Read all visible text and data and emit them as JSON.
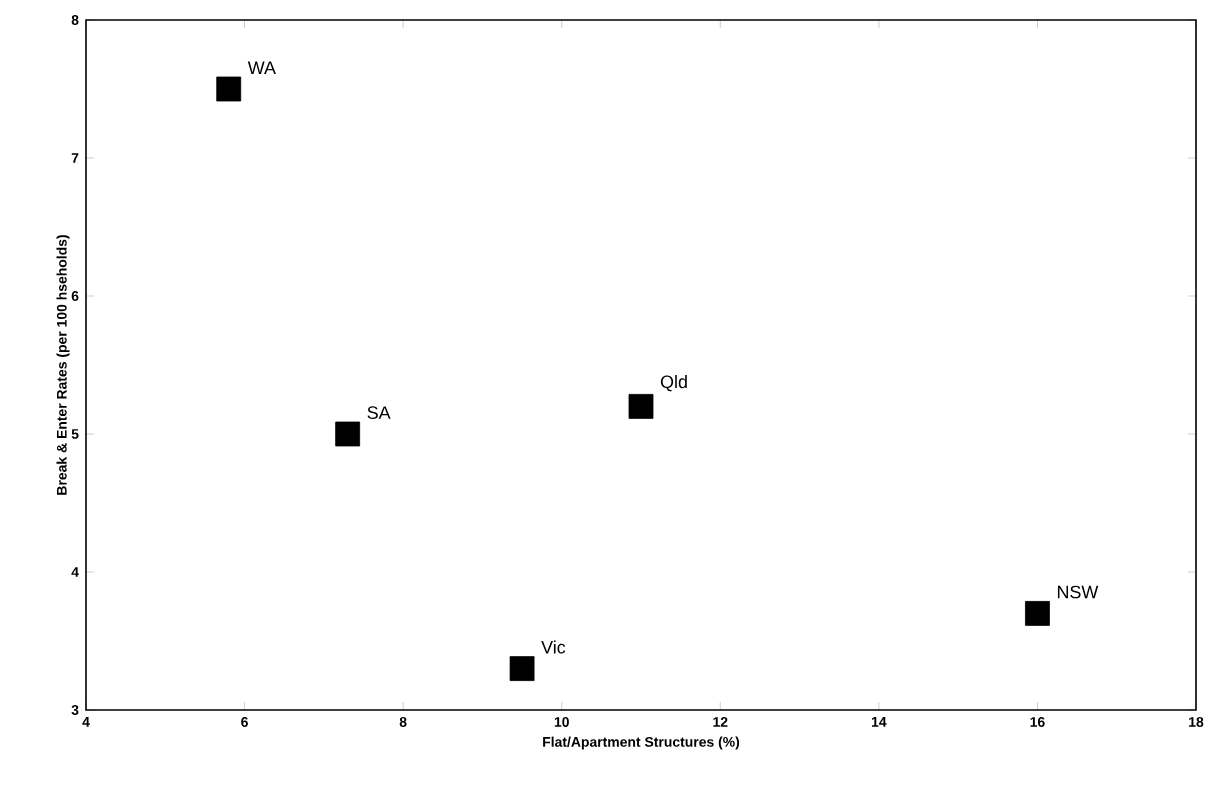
{
  "chart_data": {
    "type": "scatter",
    "xlabel": "Flat/Apartment Structures (%)",
    "ylabel": "Break & Enter Rates (per 100 hseholds)",
    "xlim": [
      4,
      18
    ],
    "ylim": [
      3,
      8
    ],
    "xticks": [
      4,
      6,
      8,
      10,
      12,
      14,
      16,
      18
    ],
    "yticks": [
      3,
      4,
      5,
      6,
      7,
      8
    ],
    "marker": "square",
    "grid": false,
    "series": [
      {
        "name": "WA",
        "color": "#000000",
        "x": [
          5.8
        ],
        "values": [
          7.5
        ]
      },
      {
        "name": "SA",
        "color": "#000000",
        "x": [
          7.3
        ],
        "values": [
          5.0
        ]
      },
      {
        "name": "Qld",
        "color": "#000000",
        "x": [
          11.0
        ],
        "values": [
          5.2
        ]
      },
      {
        "name": "Vic",
        "color": "#000000",
        "x": [
          9.5
        ],
        "values": [
          3.3
        ]
      },
      {
        "name": "NSW",
        "color": "#000000",
        "x": [
          16.0
        ],
        "values": [
          3.7
        ]
      }
    ]
  }
}
